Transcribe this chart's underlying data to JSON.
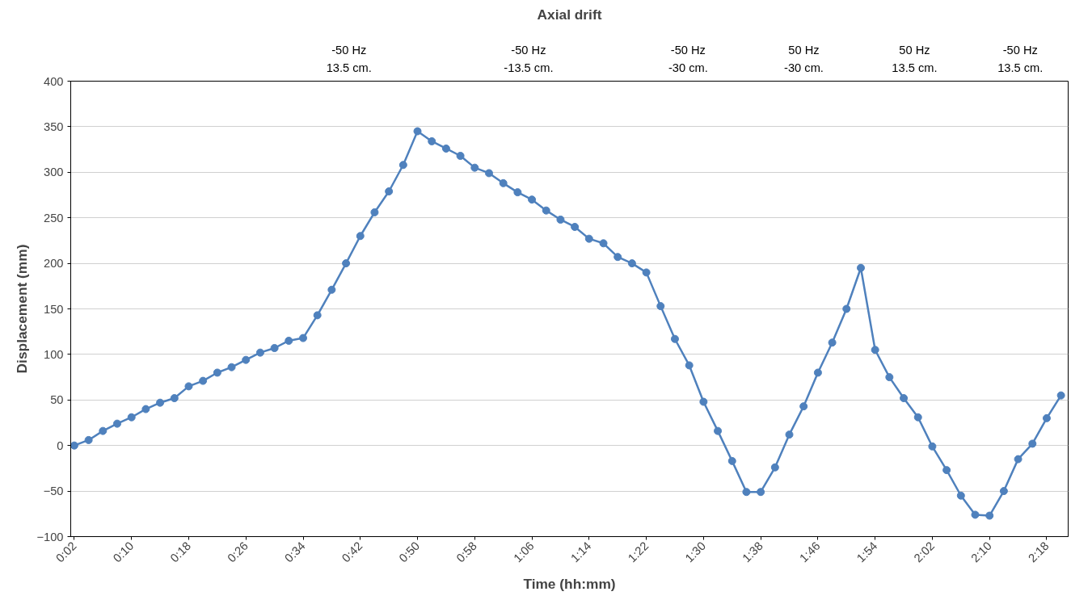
{
  "chart_data": {
    "type": "line",
    "title": "Axial drift",
    "xlabel": "Time (hh:mm)",
    "ylabel": "Displacement (mm)",
    "annotations": [
      "-50 Hz\n13.5 cm.",
      "-50 Hz\n-13.5 cm.",
      "-50 Hz\n-30 cm.",
      "50 Hz\n-30 cm.",
      "50 Hz\n13.5 cm.",
      "-50 Hz\n13.5 cm."
    ],
    "x": [
      0.0333,
      0.0667,
      0.1,
      0.1333,
      0.1667,
      0.2,
      0.2333,
      0.2667,
      0.3,
      0.3333,
      0.3667,
      0.4,
      0.4333,
      0.4667,
      0.5,
      0.5333,
      0.5667,
      0.6,
      0.6333,
      0.6667,
      0.7,
      0.7333,
      0.7667,
      0.8,
      0.8333,
      0.8667,
      0.9,
      0.9333,
      0.9667,
      1,
      1.0333,
      1.0667,
      1.1,
      1.1333,
      1.1667,
      1.2,
      1.2333,
      1.2667,
      1.3,
      1.3333,
      1.3667,
      1.4,
      1.4333,
      1.4667,
      1.5,
      1.5333,
      1.5667,
      1.6,
      1.6333,
      1.6667,
      1.7,
      1.7333,
      1.7667,
      1.8,
      1.8333,
      1.8667,
      1.9,
      1.9333,
      1.9667,
      2,
      2.0333,
      2.0667,
      2.1,
      2.1333,
      2.1667,
      2.2,
      2.2333,
      2.2667,
      2.3,
      2.3333
    ],
    "series": [
      {
        "color": "#4f81bd",
        "values": [
          0,
          6,
          16,
          24,
          31,
          40,
          47,
          52,
          65,
          71,
          80,
          86,
          94,
          102,
          107,
          115,
          118,
          143,
          171,
          200,
          230,
          256,
          279,
          308,
          345,
          334,
          326,
          318,
          305,
          299,
          288,
          278,
          270,
          258,
          248,
          240,
          227,
          222,
          207,
          200,
          190,
          153,
          117,
          88,
          48,
          16,
          -17,
          -51,
          -51,
          -24,
          12,
          43,
          80,
          113,
          150,
          195,
          105,
          75,
          52,
          31,
          -1,
          -27,
          -55,
          -76,
          -77,
          -50,
          -15,
          2,
          30,
          55
        ]
      }
    ],
    "marker": "circle",
    "line_style": "solid",
    "grid": "y",
    "xlim": [
      0.025,
      2.35
    ],
    "xticks": [
      {
        "value": 0.0333,
        "label": "0:02"
      },
      {
        "value": 0.1667,
        "label": "0:10"
      },
      {
        "value": 0.3,
        "label": "0:18"
      },
      {
        "value": 0.4333,
        "label": "0:26"
      },
      {
        "value": 0.5667,
        "label": "0:34"
      },
      {
        "value": 0.7,
        "label": "0:42"
      },
      {
        "value": 0.8333,
        "label": "0:50"
      },
      {
        "value": 0.9667,
        "label": "0:58"
      },
      {
        "value": 1.1,
        "label": "1:06"
      },
      {
        "value": 1.2333,
        "label": "1:14"
      },
      {
        "value": 1.3667,
        "label": "1:22"
      },
      {
        "value": 1.5,
        "label": "1:30"
      },
      {
        "value": 1.6333,
        "label": "1:38"
      },
      {
        "value": 1.7667,
        "label": "1:46"
      },
      {
        "value": 1.9,
        "label": "1:54"
      },
      {
        "value": 2.0333,
        "label": "2:02"
      },
      {
        "value": 2.1667,
        "label": "2:10"
      },
      {
        "value": 2.3,
        "label": "2:18"
      }
    ],
    "ylim": [
      -100,
      400
    ],
    "yticks": [
      -100,
      -50,
      0,
      50,
      100,
      150,
      200,
      250,
      300,
      350,
      400
    ]
  }
}
